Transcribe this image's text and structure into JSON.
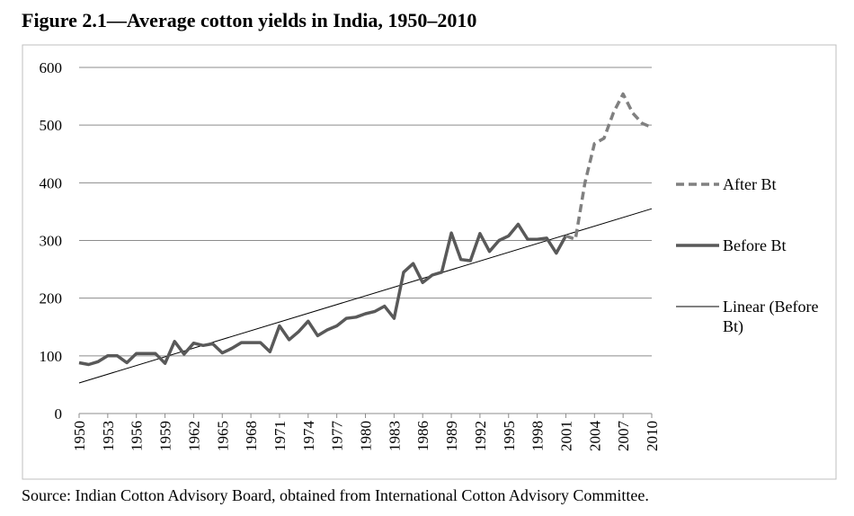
{
  "figure": {
    "title": "Figure 2.1—Average cotton yields in India, 1950–2010",
    "source": "Source:  Indian Cotton Advisory Board, obtained from International Cotton Advisory Committee."
  },
  "chart_data": {
    "type": "line",
    "title": "",
    "xlabel": "",
    "ylabel": "",
    "xlim": [
      1950,
      2010
    ],
    "ylim": [
      0,
      600
    ],
    "y_ticks": [
      0,
      100,
      200,
      300,
      400,
      500,
      600
    ],
    "x_ticks": [
      1950,
      1953,
      1956,
      1959,
      1962,
      1965,
      1968,
      1971,
      1974,
      1977,
      1980,
      1983,
      1986,
      1989,
      1992,
      1995,
      1998,
      2001,
      2004,
      2007,
      2010
    ],
    "grid": "horizontal",
    "legend_position": "right",
    "series": [
      {
        "name": "After Bt",
        "style": "dashed",
        "color": "#808080",
        "x": [
          2001,
          2002,
          2003,
          2004,
          2005,
          2006,
          2007,
          2008,
          2009,
          2010
        ],
        "y": [
          308,
          302,
          400,
          468,
          477,
          522,
          554,
          521,
          503,
          496
        ]
      },
      {
        "name": "Before Bt",
        "style": "solid",
        "color": "#595959",
        "x": [
          1950,
          1951,
          1952,
          1953,
          1954,
          1955,
          1956,
          1957,
          1958,
          1959,
          1960,
          1961,
          1962,
          1963,
          1964,
          1965,
          1966,
          1967,
          1968,
          1969,
          1970,
          1971,
          1972,
          1973,
          1974,
          1975,
          1976,
          1977,
          1978,
          1979,
          1980,
          1981,
          1982,
          1983,
          1984,
          1985,
          1986,
          1987,
          1988,
          1989,
          1990,
          1991,
          1992,
          1993,
          1994,
          1995,
          1996,
          1997,
          1998,
          1999,
          2000,
          2001
        ],
        "y": [
          88,
          85,
          90,
          100,
          100,
          88,
          104,
          104,
          104,
          87,
          125,
          103,
          122,
          118,
          121,
          105,
          113,
          123,
          123,
          123,
          107,
          152,
          128,
          142,
          160,
          135,
          145,
          152,
          165,
          167,
          173,
          177,
          186,
          165,
          245,
          260,
          227,
          240,
          245,
          313,
          267,
          265,
          312,
          281,
          300,
          308,
          328,
          302,
          302,
          304,
          278,
          308
        ]
      },
      {
        "name": "Linear (Before Bt)",
        "style": "thin",
        "color": "#000000",
        "x": [
          1950,
          2010
        ],
        "y": [
          53,
          355
        ]
      }
    ]
  }
}
